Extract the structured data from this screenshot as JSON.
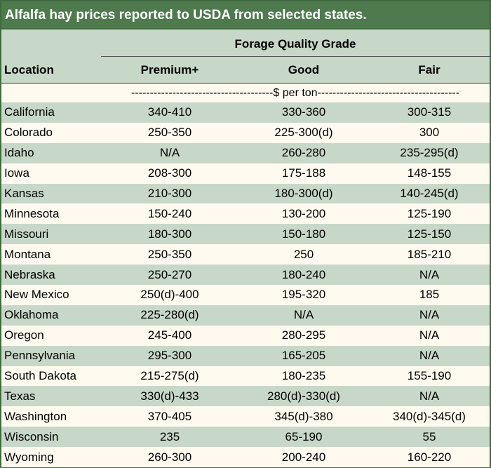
{
  "title": "Alfalfa hay prices reported to USDA from selected states.",
  "header": {
    "group": "Forage Quality Grade",
    "location": "Location",
    "columns": [
      "Premium+",
      "Good",
      "Fair"
    ]
  },
  "units": "--------------------------------------$ per ton--------------------------------------",
  "rows": [
    {
      "location": "California",
      "premium": "340-410",
      "good": "330-360",
      "fair": "300-315"
    },
    {
      "location": "Colorado",
      "premium": "250-350",
      "good": "225-300(d)",
      "fair": "300"
    },
    {
      "location": "Idaho",
      "premium": "N/A",
      "good": "260-280",
      "fair": "235-295(d)"
    },
    {
      "location": "Iowa",
      "premium": "208-300",
      "good": "175-188",
      "fair": "148-155"
    },
    {
      "location": "Kansas",
      "premium": "210-300",
      "good": "180-300(d)",
      "fair": "140-245(d)"
    },
    {
      "location": "Minnesota",
      "premium": "150-240",
      "good": "130-200",
      "fair": "125-190"
    },
    {
      "location": "Missouri",
      "premium": "180-300",
      "good": "150-180",
      "fair": "125-150"
    },
    {
      "location": "Montana",
      "premium": "250-350",
      "good": "250",
      "fair": "185-210"
    },
    {
      "location": "Nebraska",
      "premium": "250-270",
      "good": "180-240",
      "fair": "N/A"
    },
    {
      "location": "New Mexico",
      "premium": "250(d)-400",
      "good": "195-320",
      "fair": "185"
    },
    {
      "location": "Oklahoma",
      "premium": "225-280(d)",
      "good": "N/A",
      "fair": "N/A"
    },
    {
      "location": "Oregon",
      "premium": "245-400",
      "good": "280-295",
      "fair": "N/A"
    },
    {
      "location": "Pennsylvania",
      "premium": "295-300",
      "good": "165-205",
      "fair": "N/A"
    },
    {
      "location": "South Dakota",
      "premium": "215-275(d)",
      "good": "180-235",
      "fair": "155-190"
    },
    {
      "location": "Texas",
      "premium": "330(d)-433",
      "good": "280(d)-330(d)",
      "fair": "N/A"
    },
    {
      "location": "Washington",
      "premium": "370-405",
      "good": "345(d)-380",
      "fair": "340(d)-345(d)"
    },
    {
      "location": "Wisconsin",
      "premium": "235",
      "good": "65-190",
      "fair": "55"
    },
    {
      "location": "Wyoming",
      "premium": "260-300",
      "good": "200-240",
      "fair": "160-220"
    }
  ]
}
